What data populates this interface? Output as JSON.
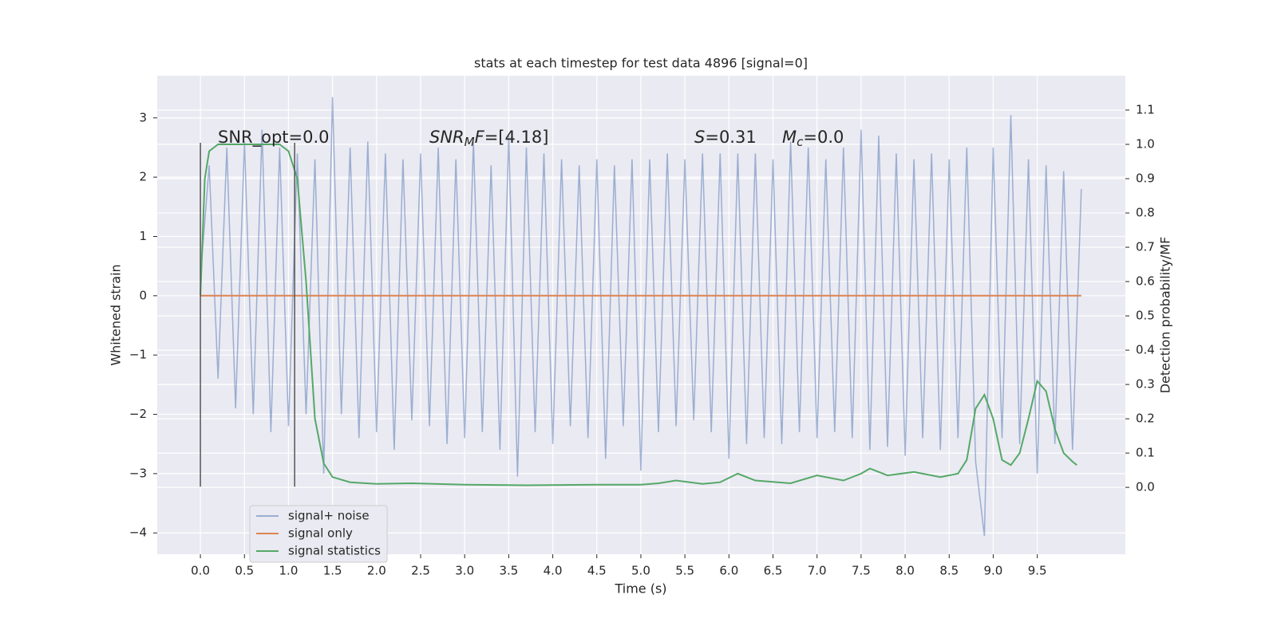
{
  "chart_data": {
    "type": "line",
    "title": "stats at each timestep for test data 4896 [signal=0]",
    "x_label": "Time (s)",
    "y_label": "Whitened strain",
    "y2_label": "Detection probability/MF",
    "xlim": [
      -0.49,
      10.5
    ],
    "ylim": [
      -4.36,
      3.71
    ],
    "y2lim": [
      -0.195,
      1.2
    ],
    "xticks": [
      {
        "value": 0,
        "label": "0.0"
      },
      {
        "value": 0.5,
        "label": "0.5"
      },
      {
        "value": 1,
        "label": "1.0"
      },
      {
        "value": 1.5,
        "label": "1.5"
      },
      {
        "value": 2,
        "label": "2.0"
      },
      {
        "value": 2.5,
        "label": "2.5"
      },
      {
        "value": 3,
        "label": "3.0"
      },
      {
        "value": 3.5,
        "label": "3.5"
      },
      {
        "value": 4,
        "label": "4.0"
      },
      {
        "value": 4.5,
        "label": "4.5"
      },
      {
        "value": 5,
        "label": "5.0"
      },
      {
        "value": 5.5,
        "label": "5.5"
      },
      {
        "value": 6,
        "label": "6.0"
      },
      {
        "value": 6.5,
        "label": "6.5"
      },
      {
        "value": 7,
        "label": "7.0"
      },
      {
        "value": 7.5,
        "label": "7.5"
      },
      {
        "value": 8,
        "label": "8.0"
      },
      {
        "value": 8.5,
        "label": "8.5"
      },
      {
        "value": 9,
        "label": "9.0"
      },
      {
        "value": 9.5,
        "label": "9.5"
      }
    ],
    "yticks": [
      {
        "value": -4,
        "label": "−4"
      },
      {
        "value": -3,
        "label": "−3"
      },
      {
        "value": -2,
        "label": "−2"
      },
      {
        "value": -1,
        "label": "−1"
      },
      0,
      1,
      2,
      3
    ],
    "y2ticks": [
      {
        "value": 0,
        "label": "0.0"
      },
      {
        "value": 0.1,
        "label": "0.1"
      },
      {
        "value": 0.2,
        "label": "0.2"
      },
      {
        "value": 0.3,
        "label": "0.3"
      },
      {
        "value": 0.4,
        "label": "0.4"
      },
      {
        "value": 0.5,
        "label": "0.5"
      },
      {
        "value": 0.6,
        "label": "0.6"
      },
      {
        "value": 0.7,
        "label": "0.7"
      },
      {
        "value": 0.8,
        "label": "0.8"
      },
      {
        "value": 0.9,
        "label": "0.9"
      },
      {
        "value": 1,
        "label": "1.0"
      },
      {
        "value": 1.1,
        "label": "1.1"
      }
    ],
    "grid": true,
    "legend": "lower left",
    "annotations": [
      [
        {
          "text": "SNR_opt=0.0"
        }
      ],
      [
        {
          "text": "SNR",
          "italic": true
        },
        {
          "text": "M",
          "italic": true,
          "sub": true
        },
        {
          "text": "F",
          "italic": true
        },
        {
          "text": "=[4.18]"
        }
      ],
      [
        {
          "text": "S",
          "italic": true
        },
        {
          "text": "=0.31"
        }
      ],
      [
        {
          "text": "M",
          "italic": true
        },
        {
          "text": "c",
          "italic": true,
          "sub": true
        },
        {
          "text": "=0.0"
        }
      ]
    ],
    "vlines": {
      "x": [
        0,
        1.07
      ],
      "ymin": -3.22,
      "ymax": 2.58,
      "color": "#555555"
    },
    "series": [
      {
        "name": "signal+ noise",
        "color": "#4c72b0",
        "opacity": 0.5,
        "axis": "y",
        "x": [
          0,
          0.1,
          0.2,
          0.3,
          0.4,
          0.5,
          0.6,
          0.7,
          0.8,
          0.9,
          1,
          1.1,
          1.2,
          1.3,
          1.4,
          1.5,
          1.6,
          1.7,
          1.8,
          1.9,
          2,
          2.1,
          2.2,
          2.3,
          2.4,
          2.5,
          2.6,
          2.7,
          2.8,
          2.9,
          3,
          3.1,
          3.2,
          3.3,
          3.4,
          3.5,
          3.6,
          3.7,
          3.8,
          3.9,
          4,
          4.1,
          4.2,
          4.3,
          4.4,
          4.5,
          4.6,
          4.7,
          4.8,
          4.9,
          5,
          5.1,
          5.2,
          5.3,
          5.4,
          5.5,
          5.6,
          5.7,
          5.8,
          5.9,
          6,
          6.1,
          6.2,
          6.3,
          6.4,
          6.5,
          6.6,
          6.7,
          6.8,
          6.9,
          7,
          7.1,
          7.2,
          7.3,
          7.4,
          7.5,
          7.6,
          7.7,
          7.8,
          7.9,
          8,
          8.1,
          8.2,
          8.3,
          8.4,
          8.5,
          8.6,
          8.7,
          8.8,
          8.9,
          9,
          9.1,
          9.2,
          9.3,
          9.4,
          9.5,
          9.6,
          9.7,
          9.8,
          9.9,
          10
        ],
        "values": [
          0.3,
          2.2,
          -1.4,
          2.5,
          -1.9,
          2.6,
          -2.0,
          2.8,
          -2.3,
          2.5,
          -2.2,
          2.4,
          -2.0,
          2.3,
          -3.0,
          3.35,
          -2.0,
          2.5,
          -2.4,
          2.6,
          -2.3,
          2.4,
          -2.6,
          2.3,
          -2.1,
          2.4,
          -2.2,
          2.5,
          -2.5,
          2.3,
          -2.4,
          2.6,
          -2.3,
          2.2,
          -2.6,
          2.7,
          -3.05,
          2.5,
          -2.3,
          2.4,
          -2.5,
          2.3,
          -2.2,
          2.2,
          -2.4,
          2.3,
          -2.75,
          2.2,
          -2.2,
          2.3,
          -2.95,
          2.3,
          -2.3,
          2.4,
          -2.2,
          2.3,
          -2.1,
          2.4,
          -2.3,
          2.4,
          -2.75,
          2.4,
          -2.5,
          2.4,
          -2.4,
          2.3,
          -2.5,
          2.6,
          -2.3,
          2.5,
          -2.4,
          2.3,
          -2.3,
          2.5,
          -2.4,
          2.8,
          -2.6,
          2.7,
          -2.55,
          2.4,
          -2.7,
          2.3,
          -2.4,
          2.4,
          -2.6,
          2.3,
          -2.4,
          2.5,
          -2.8,
          -4.05,
          2.5,
          -2.4,
          3.05,
          -2.5,
          2.3,
          -3.0,
          2.2,
          -2.5,
          2.1,
          -2.6,
          1.8
        ]
      },
      {
        "name": "signal only",
        "color": "#dd8452",
        "opacity": 1,
        "axis": "y",
        "x": [
          0,
          10
        ],
        "values": [
          0,
          0
        ]
      },
      {
        "name": "signal statistics",
        "color": "#55a868",
        "opacity": 1,
        "axis": "y2",
        "x": [
          0,
          0.05,
          0.1,
          0.2,
          0.5,
          0.9,
          1,
          1.1,
          1.2,
          1.3,
          1.4,
          1.5,
          1.7,
          2,
          2.4,
          3,
          3.7,
          4.5,
          5,
          5.2,
          5.4,
          5.7,
          5.9,
          6.1,
          6.3,
          6.7,
          7,
          7.3,
          7.5,
          7.6,
          7.8,
          8.1,
          8.4,
          8.6,
          8.7,
          8.8,
          8.9,
          9,
          9.1,
          9.2,
          9.3,
          9.4,
          9.5,
          9.6,
          9.7,
          9.8,
          9.9,
          9.95
        ],
        "values": [
          0.56,
          0.9,
          0.98,
          1.0,
          1.0,
          1.0,
          0.98,
          0.9,
          0.6,
          0.2,
          0.07,
          0.03,
          0.015,
          0.01,
          0.012,
          0.008,
          0.006,
          0.008,
          0.008,
          0.012,
          0.02,
          0.01,
          0.015,
          0.04,
          0.02,
          0.012,
          0.035,
          0.02,
          0.04,
          0.055,
          0.035,
          0.045,
          0.03,
          0.04,
          0.08,
          0.23,
          0.27,
          0.2,
          0.08,
          0.065,
          0.1,
          0.2,
          0.31,
          0.28,
          0.17,
          0.1,
          0.075,
          0.065
        ]
      }
    ]
  }
}
